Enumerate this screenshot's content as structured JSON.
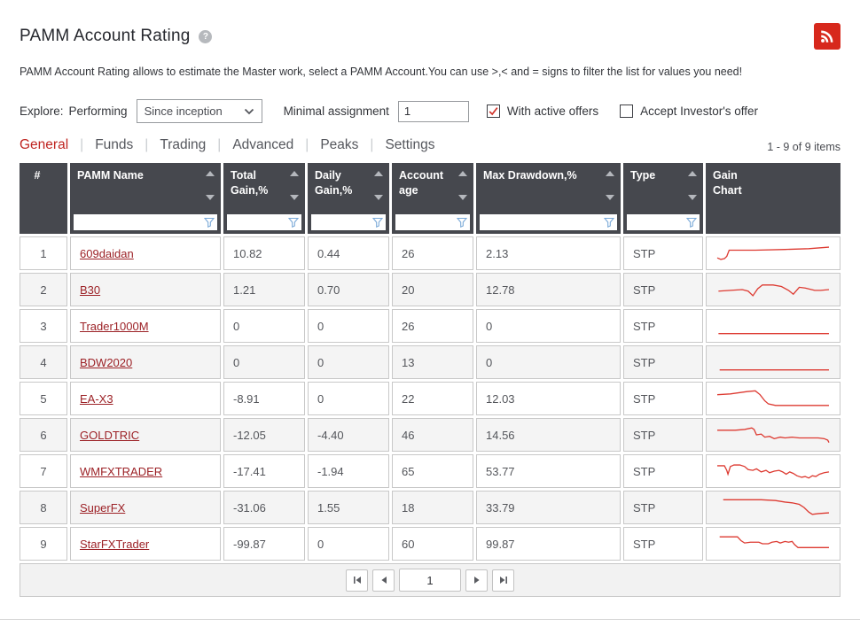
{
  "page": {
    "title": "PAMM Account Rating",
    "description": "PAMM Account Rating allows to estimate the Master work, select a PAMM Account.You can use >,< and = signs to filter the list for values you need!"
  },
  "icons": {
    "rss": "rss-feed",
    "help": "question-mark-circle",
    "select_chevron": "chevron-down",
    "sort_asc": "triangle-up",
    "sort_desc": "triangle-down",
    "filter": "funnel",
    "checkbox_check": "checkmark",
    "pager_first": "first-page",
    "pager_prev": "previous-page",
    "pager_next": "next-page",
    "pager_last": "last-page"
  },
  "colors": {
    "accent_red": "#bf2420",
    "rss_red": "#d7281c",
    "link_red": "#9c2126",
    "sparkline_red": "#dd3a31",
    "header_dark": "#46484e",
    "row_alt": "#f4f4f4",
    "funnel_blue": "#7aa9d8"
  },
  "filters": {
    "explore_label": "Explore:",
    "performing_label": "Performing",
    "period_select_value": "Since inception",
    "minimal_assignment_label": "Minimal assignment",
    "minimal_assignment_value": "1",
    "with_active_offers_label": "With active offers",
    "with_active_offers_checked": true,
    "accept_investors_offer_label": "Accept Investor's offer",
    "accept_investors_offer_checked": false
  },
  "tabs": [
    {
      "label": "General",
      "active": true
    },
    {
      "label": "Funds",
      "active": false
    },
    {
      "label": "Trading",
      "active": false
    },
    {
      "label": "Advanced",
      "active": false
    },
    {
      "label": "Peaks",
      "active": false
    },
    {
      "label": "Settings",
      "active": false
    }
  ],
  "items_count": "1 - 9 of 9 items",
  "table": {
    "columns": [
      {
        "label": "#",
        "sortable": false,
        "filterable": false
      },
      {
        "label": "PAMM Name",
        "sortable": true,
        "filterable": true,
        "filter_value": ""
      },
      {
        "label": "Total Gain,%",
        "sortable": true,
        "filterable": true,
        "filter_value": ""
      },
      {
        "label": "Daily Gain,%",
        "sortable": true,
        "filterable": true,
        "filter_value": ""
      },
      {
        "label": "Account age",
        "sortable": true,
        "filterable": true,
        "filter_value": ""
      },
      {
        "label": "Max Drawdown,%",
        "sortable": true,
        "filterable": true,
        "filter_value": ""
      },
      {
        "label": "Type",
        "sortable": true,
        "filterable": true,
        "filter_value": ""
      },
      {
        "label": "Gain Chart",
        "sortable": false,
        "filterable": false
      }
    ],
    "rows": [
      {
        "num": "1",
        "name": "609daidan",
        "total_gain": "10.82",
        "daily_gain": "0.44",
        "age": "26",
        "max_drawdown": "2.13",
        "type": "STP",
        "gain_chart_points": [
          [
            3,
            21
          ],
          [
            6,
            23
          ],
          [
            9,
            22
          ],
          [
            11,
            19
          ],
          [
            13,
            11
          ],
          [
            35,
            11
          ],
          [
            60,
            10
          ],
          [
            80,
            9
          ],
          [
            97,
            7
          ]
        ]
      },
      {
        "num": "2",
        "name": "B30",
        "total_gain": "1.21",
        "daily_gain": "0.70",
        "age": "20",
        "max_drawdown": "12.78",
        "type": "STP",
        "gain_chart_points": [
          [
            4,
            17
          ],
          [
            14,
            16
          ],
          [
            24,
            15
          ],
          [
            29,
            17
          ],
          [
            33,
            23
          ],
          [
            37,
            14
          ],
          [
            41,
            9
          ],
          [
            50,
            9
          ],
          [
            57,
            11
          ],
          [
            63,
            16
          ],
          [
            67,
            21
          ],
          [
            72,
            12
          ],
          [
            77,
            13
          ],
          [
            85,
            16
          ],
          [
            90,
            16
          ],
          [
            97,
            15
          ]
        ]
      },
      {
        "num": "3",
        "name": "Trader1000M",
        "total_gain": "0",
        "daily_gain": "0",
        "age": "26",
        "max_drawdown": "0",
        "type": "STP",
        "gain_chart_points": [
          [
            4,
            25
          ],
          [
            97,
            25
          ]
        ]
      },
      {
        "num": "4",
        "name": "BDW2020",
        "total_gain": "0",
        "daily_gain": "0",
        "age": "13",
        "max_drawdown": "0",
        "type": "STP",
        "gain_chart_points": [
          [
            5,
            25
          ],
          [
            97,
            25
          ]
        ]
      },
      {
        "num": "5",
        "name": "EA-X3",
        "total_gain": "-8.91",
        "daily_gain": "0",
        "age": "22",
        "max_drawdown": "12.03",
        "type": "STP",
        "gain_chart_points": [
          [
            3,
            10
          ],
          [
            14,
            9
          ],
          [
            28,
            6
          ],
          [
            35,
            5
          ],
          [
            39,
            10
          ],
          [
            43,
            18
          ],
          [
            46,
            22
          ],
          [
            52,
            24
          ],
          [
            97,
            24
          ]
        ]
      },
      {
        "num": "6",
        "name": "GOLDTRIC",
        "total_gain": "-12.05",
        "daily_gain": "-4.40",
        "age": "46",
        "max_drawdown": "14.56",
        "type": "STP",
        "gain_chart_points": [
          [
            3,
            9
          ],
          [
            18,
            9
          ],
          [
            26,
            8
          ],
          [
            32,
            6
          ],
          [
            34,
            8
          ],
          [
            36,
            15
          ],
          [
            40,
            14
          ],
          [
            43,
            18
          ],
          [
            47,
            17
          ],
          [
            51,
            20
          ],
          [
            56,
            18
          ],
          [
            60,
            19
          ],
          [
            66,
            18
          ],
          [
            72,
            19
          ],
          [
            80,
            19
          ],
          [
            88,
            19
          ],
          [
            93,
            20
          ],
          [
            96,
            22
          ],
          [
            97,
            25
          ]
        ]
      },
      {
        "num": "7",
        "name": "WMFXTRADER",
        "total_gain": "-17.41",
        "daily_gain": "-1.94",
        "age": "65",
        "max_drawdown": "53.77",
        "type": "STP",
        "gain_chart_points": [
          [
            3,
            8
          ],
          [
            9,
            8
          ],
          [
            11,
            14
          ],
          [
            12,
            19
          ],
          [
            14,
            9
          ],
          [
            17,
            7
          ],
          [
            22,
            7
          ],
          [
            26,
            9
          ],
          [
            29,
            13
          ],
          [
            33,
            14
          ],
          [
            36,
            12
          ],
          [
            40,
            16
          ],
          [
            44,
            14
          ],
          [
            47,
            17
          ],
          [
            51,
            15
          ],
          [
            55,
            14
          ],
          [
            58,
            16
          ],
          [
            61,
            19
          ],
          [
            64,
            16
          ],
          [
            67,
            18
          ],
          [
            70,
            21
          ],
          [
            74,
            23
          ],
          [
            77,
            22
          ],
          [
            80,
            24
          ],
          [
            83,
            21
          ],
          [
            86,
            22
          ],
          [
            89,
            19
          ],
          [
            93,
            17
          ],
          [
            97,
            16
          ]
        ]
      },
      {
        "num": "8",
        "name": "SuperFX",
        "total_gain": "-31.06",
        "daily_gain": "1.55",
        "age": "18",
        "max_drawdown": "33.79",
        "type": "STP",
        "gain_chart_points": [
          [
            8,
            5
          ],
          [
            40,
            5
          ],
          [
            52,
            6
          ],
          [
            60,
            8
          ],
          [
            66,
            9
          ],
          [
            72,
            11
          ],
          [
            76,
            15
          ],
          [
            80,
            21
          ],
          [
            83,
            24
          ],
          [
            88,
            23
          ],
          [
            97,
            22
          ]
        ]
      },
      {
        "num": "9",
        "name": "StarFXTrader",
        "total_gain": "-99.87",
        "daily_gain": "0",
        "age": "60",
        "max_drawdown": "99.87",
        "type": "STP",
        "gain_chart_points": [
          [
            5,
            6
          ],
          [
            20,
            6
          ],
          [
            23,
            11
          ],
          [
            26,
            14
          ],
          [
            31,
            13
          ],
          [
            38,
            13
          ],
          [
            41,
            15
          ],
          [
            46,
            15
          ],
          [
            49,
            13
          ],
          [
            53,
            12
          ],
          [
            56,
            14
          ],
          [
            60,
            12
          ],
          [
            63,
            13
          ],
          [
            66,
            12
          ],
          [
            68,
            16
          ],
          [
            71,
            20
          ],
          [
            76,
            20
          ],
          [
            97,
            20
          ]
        ]
      }
    ]
  },
  "pagination": {
    "current_page": "1"
  }
}
